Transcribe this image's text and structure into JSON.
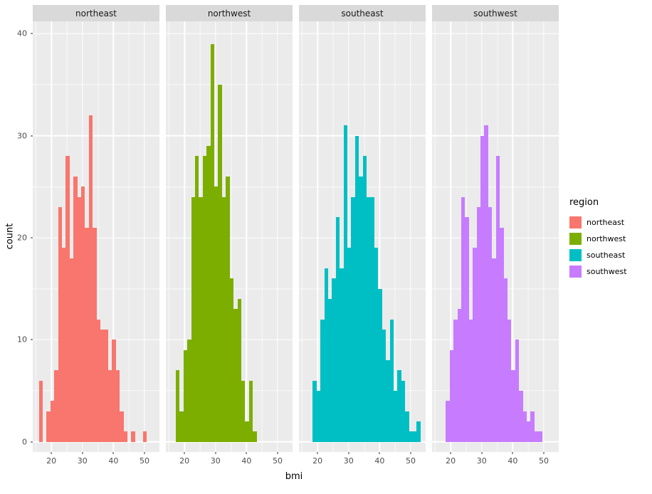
{
  "chart_data": {
    "type": "bar",
    "subtype": "faceted-histogram",
    "title": "",
    "xlabel": "bmi",
    "ylabel": "count",
    "legend_title": "region",
    "legend_position": "right",
    "facet_labels": [
      "northeast",
      "northwest",
      "southeast",
      "southwest"
    ],
    "x_domain": [
      14.0,
      54.8
    ],
    "y_domain": [
      -1,
      41.2
    ],
    "x_major": [
      20,
      30,
      40,
      50
    ],
    "x_minor": [
      15,
      25,
      35,
      45,
      55
    ],
    "y_major": [
      0,
      10,
      20,
      30,
      40
    ],
    "y_minor": [
      5,
      15,
      25,
      35
    ],
    "bin_start": 15.96,
    "bin_width": 1.24,
    "panel_bg": "#EBEBEB",
    "strip_bg": "#D9D9D9",
    "grid_color": "#FFFFFF",
    "series": [
      {
        "name": "northeast",
        "color": "#F8766D",
        "counts": [
          6,
          0,
          3,
          4,
          7,
          23,
          19,
          28,
          18,
          26,
          24,
          25,
          21,
          32,
          21,
          12,
          11,
          11,
          7,
          10,
          7,
          3,
          1,
          0,
          1,
          0,
          0,
          1,
          0,
          0
        ]
      },
      {
        "name": "northwest",
        "color": "#7CAE00",
        "counts": [
          0,
          7,
          3,
          9,
          10,
          24,
          28,
          24,
          28,
          29,
          39,
          25,
          35,
          24,
          26,
          16,
          13,
          14,
          6,
          2,
          6,
          1,
          0,
          0,
          0,
          0,
          0,
          0,
          0,
          0
        ]
      },
      {
        "name": "southeast",
        "color": "#00BFC4",
        "counts": [
          0,
          0,
          6,
          5,
          12,
          17,
          14,
          16,
          22,
          17,
          31,
          19,
          24,
          30,
          26,
          28,
          24,
          24,
          19,
          15,
          11,
          8,
          12,
          5,
          7,
          6,
          3,
          1,
          1,
          2
        ]
      },
      {
        "name": "southwest",
        "color": "#C77CFF",
        "counts": [
          0,
          0,
          4,
          9,
          12,
          13,
          24,
          22,
          12,
          19,
          23,
          30,
          31,
          23,
          18,
          28,
          21,
          16,
          12,
          7,
          10,
          5,
          3,
          2,
          3,
          1,
          1,
          0,
          0,
          0
        ]
      }
    ]
  }
}
